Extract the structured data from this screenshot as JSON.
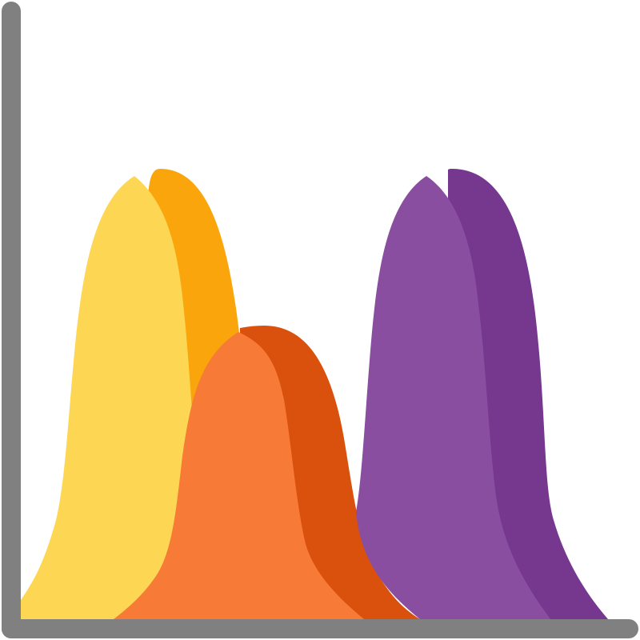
{
  "icon": {
    "name": "bell-curve-distribution-icon",
    "colors": {
      "axis": "#808080",
      "yellow_light": "#FDD754",
      "yellow_dark": "#FAA50C",
      "orange_light": "#F77B36",
      "orange_dark": "#DA510E",
      "purple_light": "#8A4EA1",
      "purple_dark": "#76378F"
    },
    "curves": [
      {
        "name": "yellow-curve",
        "relative_peak": 1.0
      },
      {
        "name": "orange-curve",
        "relative_peak": 0.65
      },
      {
        "name": "purple-curve",
        "relative_peak": 1.0
      }
    ]
  }
}
